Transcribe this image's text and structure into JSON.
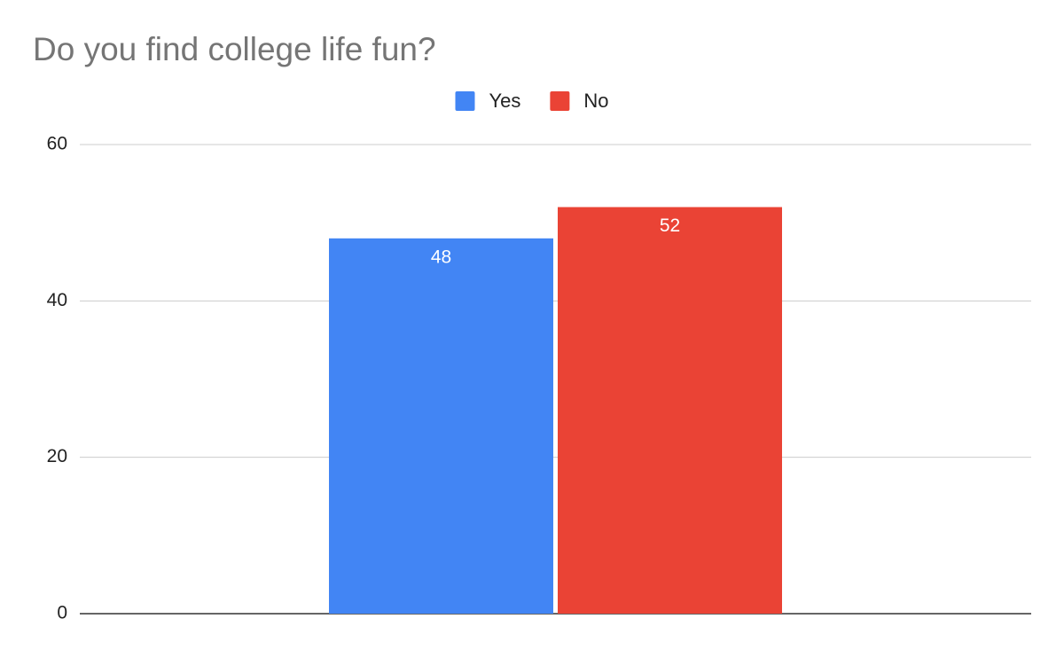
{
  "chart_data": {
    "type": "bar",
    "title": "Do you find college life fun?",
    "categories": [
      null
    ],
    "series": [
      {
        "name": "Yes",
        "color": "#4285f4",
        "values": [
          48
        ]
      },
      {
        "name": "No",
        "color": "#ea4335",
        "values": [
          52
        ]
      }
    ],
    "ylim": [
      0,
      60
    ],
    "yticks": [
      0,
      20,
      40,
      60
    ],
    "grid": true,
    "legend": "top",
    "data_labels": true
  }
}
